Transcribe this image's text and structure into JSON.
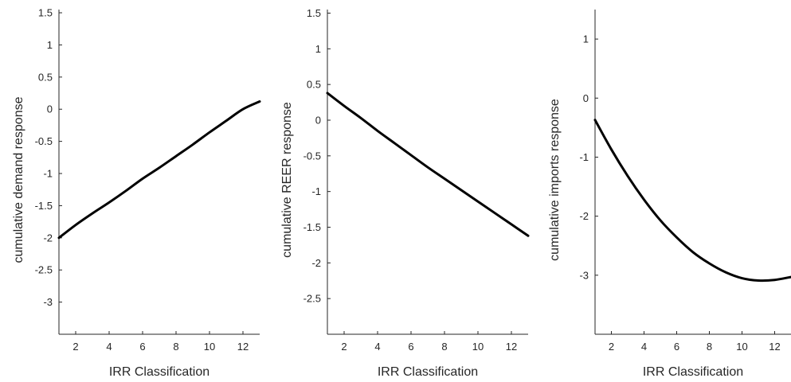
{
  "chart_data": [
    {
      "type": "line",
      "xlabel": "IRR Classification",
      "ylabel": "cumulative demand response",
      "xlim": [
        1,
        13
      ],
      "ylim": [
        -3.5,
        1.55
      ],
      "xticks": [
        2,
        4,
        6,
        8,
        10,
        12
      ],
      "yticks": [
        -3,
        -2.5,
        -2,
        -1.5,
        -1,
        -0.5,
        0,
        0.5,
        1,
        1.5
      ],
      "grid": false,
      "series": [
        {
          "color": "#000000",
          "x": [
            1,
            2,
            3,
            4,
            5,
            6,
            7,
            8,
            9,
            10,
            11,
            12,
            13
          ],
          "y": [
            -2.0,
            -1.8,
            -1.62,
            -1.45,
            -1.27,
            -1.08,
            -0.91,
            -0.73,
            -0.55,
            -0.36,
            -0.18,
            0.0,
            0.12
          ]
        }
      ]
    },
    {
      "type": "line",
      "xlabel": "IRR Classification",
      "ylabel": "cumulative REER response",
      "xlim": [
        1,
        13
      ],
      "ylim": [
        -3.0,
        1.55
      ],
      "xticks": [
        2,
        4,
        6,
        8,
        10,
        12
      ],
      "yticks": [
        -2.5,
        -2,
        -1.5,
        -1,
        -0.5,
        0,
        0.5,
        1,
        1.5
      ],
      "grid": false,
      "series": [
        {
          "color": "#000000",
          "x": [
            1,
            2,
            3,
            4,
            5,
            6,
            7,
            8,
            9,
            10,
            11,
            12,
            13
          ],
          "y": [
            0.38,
            0.2,
            0.03,
            -0.15,
            -0.32,
            -0.49,
            -0.66,
            -0.82,
            -0.98,
            -1.14,
            -1.3,
            -1.46,
            -1.62
          ]
        }
      ]
    },
    {
      "type": "line",
      "xlabel": "IRR Classification",
      "ylabel": "cumulative imports response",
      "xlim": [
        1,
        13
      ],
      "ylim": [
        -4.0,
        1.5
      ],
      "xticks": [
        2,
        4,
        6,
        8,
        10,
        12
      ],
      "yticks": [
        -3,
        -2,
        -1,
        0,
        1
      ],
      "grid": false,
      "series": [
        {
          "color": "#000000",
          "x": [
            1,
            2,
            3,
            4,
            5,
            6,
            7,
            8,
            9,
            10,
            11,
            12,
            13
          ],
          "y": [
            -0.37,
            -0.87,
            -1.32,
            -1.72,
            -2.07,
            -2.36,
            -2.61,
            -2.8,
            -2.95,
            -3.05,
            -3.09,
            -3.08,
            -3.03
          ]
        }
      ]
    }
  ]
}
